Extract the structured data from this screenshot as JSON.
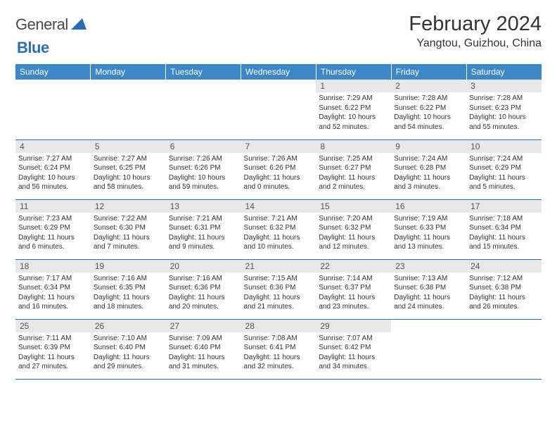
{
  "logo": {
    "textA": "General",
    "textB": "Blue",
    "triangleColor": "#2a6fb5"
  },
  "title": "February 2024",
  "subtitle": "Yangtou, Guizhou, China",
  "theme": {
    "headerBg": "#3b87c8",
    "headerText": "#ffffff",
    "dayNumBg": "#e8e8e8",
    "borderColor": "#2a6fb5",
    "bodyFontSize": 10,
    "dayNumFontSize": 12
  },
  "weekdays": [
    "Sunday",
    "Monday",
    "Tuesday",
    "Wednesday",
    "Thursday",
    "Friday",
    "Saturday"
  ],
  "firstWeekday": 4,
  "days": [
    {
      "n": 1,
      "sunrise": "7:29 AM",
      "sunset": "6:22 PM",
      "daylight": "10 hours and 52 minutes."
    },
    {
      "n": 2,
      "sunrise": "7:28 AM",
      "sunset": "6:22 PM",
      "daylight": "10 hours and 54 minutes."
    },
    {
      "n": 3,
      "sunrise": "7:28 AM",
      "sunset": "6:23 PM",
      "daylight": "10 hours and 55 minutes."
    },
    {
      "n": 4,
      "sunrise": "7:27 AM",
      "sunset": "6:24 PM",
      "daylight": "10 hours and 56 minutes."
    },
    {
      "n": 5,
      "sunrise": "7:27 AM",
      "sunset": "6:25 PM",
      "daylight": "10 hours and 58 minutes."
    },
    {
      "n": 6,
      "sunrise": "7:26 AM",
      "sunset": "6:26 PM",
      "daylight": "10 hours and 59 minutes."
    },
    {
      "n": 7,
      "sunrise": "7:26 AM",
      "sunset": "6:26 PM",
      "daylight": "11 hours and 0 minutes."
    },
    {
      "n": 8,
      "sunrise": "7:25 AM",
      "sunset": "6:27 PM",
      "daylight": "11 hours and 2 minutes."
    },
    {
      "n": 9,
      "sunrise": "7:24 AM",
      "sunset": "6:28 PM",
      "daylight": "11 hours and 3 minutes."
    },
    {
      "n": 10,
      "sunrise": "7:24 AM",
      "sunset": "6:29 PM",
      "daylight": "11 hours and 5 minutes."
    },
    {
      "n": 11,
      "sunrise": "7:23 AM",
      "sunset": "6:29 PM",
      "daylight": "11 hours and 6 minutes."
    },
    {
      "n": 12,
      "sunrise": "7:22 AM",
      "sunset": "6:30 PM",
      "daylight": "11 hours and 7 minutes."
    },
    {
      "n": 13,
      "sunrise": "7:21 AM",
      "sunset": "6:31 PM",
      "daylight": "11 hours and 9 minutes."
    },
    {
      "n": 14,
      "sunrise": "7:21 AM",
      "sunset": "6:32 PM",
      "daylight": "11 hours and 10 minutes."
    },
    {
      "n": 15,
      "sunrise": "7:20 AM",
      "sunset": "6:32 PM",
      "daylight": "11 hours and 12 minutes."
    },
    {
      "n": 16,
      "sunrise": "7:19 AM",
      "sunset": "6:33 PM",
      "daylight": "11 hours and 13 minutes."
    },
    {
      "n": 17,
      "sunrise": "7:18 AM",
      "sunset": "6:34 PM",
      "daylight": "11 hours and 15 minutes."
    },
    {
      "n": 18,
      "sunrise": "7:17 AM",
      "sunset": "6:34 PM",
      "daylight": "11 hours and 16 minutes."
    },
    {
      "n": 19,
      "sunrise": "7:16 AM",
      "sunset": "6:35 PM",
      "daylight": "11 hours and 18 minutes."
    },
    {
      "n": 20,
      "sunrise": "7:16 AM",
      "sunset": "6:36 PM",
      "daylight": "11 hours and 20 minutes."
    },
    {
      "n": 21,
      "sunrise": "7:15 AM",
      "sunset": "6:36 PM",
      "daylight": "11 hours and 21 minutes."
    },
    {
      "n": 22,
      "sunrise": "7:14 AM",
      "sunset": "6:37 PM",
      "daylight": "11 hours and 23 minutes."
    },
    {
      "n": 23,
      "sunrise": "7:13 AM",
      "sunset": "6:38 PM",
      "daylight": "11 hours and 24 minutes."
    },
    {
      "n": 24,
      "sunrise": "7:12 AM",
      "sunset": "6:38 PM",
      "daylight": "11 hours and 26 minutes."
    },
    {
      "n": 25,
      "sunrise": "7:11 AM",
      "sunset": "6:39 PM",
      "daylight": "11 hours and 27 minutes."
    },
    {
      "n": 26,
      "sunrise": "7:10 AM",
      "sunset": "6:40 PM",
      "daylight": "11 hours and 29 minutes."
    },
    {
      "n": 27,
      "sunrise": "7:09 AM",
      "sunset": "6:40 PM",
      "daylight": "11 hours and 31 minutes."
    },
    {
      "n": 28,
      "sunrise": "7:08 AM",
      "sunset": "6:41 PM",
      "daylight": "11 hours and 32 minutes."
    },
    {
      "n": 29,
      "sunrise": "7:07 AM",
      "sunset": "6:42 PM",
      "daylight": "11 hours and 34 minutes."
    }
  ],
  "labels": {
    "sunrise": "Sunrise:",
    "sunset": "Sunset:",
    "daylight": "Daylight:"
  }
}
